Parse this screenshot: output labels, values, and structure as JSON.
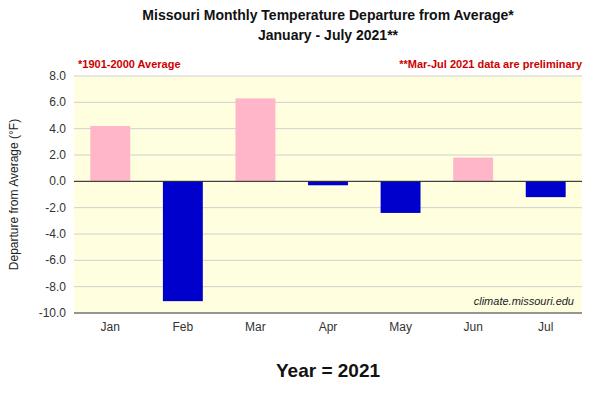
{
  "chart_data": {
    "type": "bar",
    "title": "Missouri Monthly Temperature Departure from Average*",
    "subtitle": "January - July 2021**",
    "y_label": "Departure from Average (°F)",
    "x_label": "Year = 2021",
    "categories": [
      "Jan",
      "Feb",
      "Mar",
      "Apr",
      "May",
      "Jun",
      "Jul"
    ],
    "values": [
      4.2,
      -9.1,
      6.3,
      -0.3,
      -2.4,
      1.8,
      -1.2
    ],
    "colors": [
      "#FFB6C8",
      "#0000CC",
      "#FFB6C8",
      "#0000CC",
      "#0000CC",
      "#FFB6C8",
      "#0000CC"
    ],
    "ylim": [
      -10.0,
      8.0
    ],
    "yticks": [
      {
        "value": -10.0,
        "label": "-10.0"
      },
      {
        "value": -8.0,
        "label": "-8.0"
      },
      {
        "value": -6.0,
        "label": "-6.0"
      },
      {
        "value": -4.0,
        "label": "-4.0"
      },
      {
        "value": -2.0,
        "label": "-2.0"
      },
      {
        "value": 0.0,
        "label": "0.0"
      },
      {
        "value": 2.0,
        "label": "2.0"
      },
      {
        "value": 4.0,
        "label": "4.0"
      },
      {
        "value": 6.0,
        "label": "6.0"
      },
      {
        "value": 8.0,
        "label": "8.0"
      }
    ],
    "grid": true,
    "annotations": [
      "*1901-2000 Average",
      "**Mar-Jul 2021 data are preliminary",
      "climate.missouri.edu"
    ]
  }
}
